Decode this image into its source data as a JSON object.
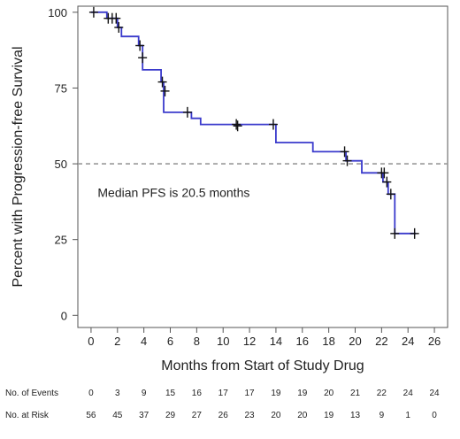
{
  "chart_data": {
    "type": "line",
    "subtype": "kaplan-meier step curve",
    "title": "",
    "xlabel": "Months from Start of Study Drug",
    "ylabel": "Percent with Progression-free Survival",
    "xlim": [
      -1,
      27
    ],
    "ylim": [
      -4,
      102
    ],
    "xticks": [
      0,
      2,
      4,
      6,
      8,
      10,
      12,
      14,
      16,
      18,
      20,
      22,
      24,
      26
    ],
    "yticks": [
      0,
      25,
      50,
      75,
      100
    ],
    "grid": false,
    "reference_line": {
      "y": 50,
      "style": "dashed",
      "color": "#9a9a9a"
    },
    "annotation": {
      "text": "Median PFS is 20.5 months",
      "x": 0.5,
      "y": 39
    },
    "line_color": "#3a3acc",
    "censor_color": "#111111",
    "series": [
      {
        "step_points": [
          [
            0,
            100
          ],
          [
            1.2,
            100
          ],
          [
            1.2,
            98
          ],
          [
            2.0,
            98
          ],
          [
            2.0,
            95
          ],
          [
            2.3,
            95
          ],
          [
            2.3,
            92
          ],
          [
            3.6,
            92
          ],
          [
            3.6,
            89
          ],
          [
            3.9,
            89
          ],
          [
            3.9,
            81
          ],
          [
            5.3,
            81
          ],
          [
            5.3,
            77
          ],
          [
            5.5,
            77
          ],
          [
            5.5,
            67
          ],
          [
            7.6,
            67
          ],
          [
            7.6,
            65
          ],
          [
            8.3,
            65
          ],
          [
            8.3,
            63
          ],
          [
            14.0,
            63
          ],
          [
            14.0,
            57
          ],
          [
            16.8,
            57
          ],
          [
            16.8,
            54
          ],
          [
            19.3,
            54
          ],
          [
            19.3,
            51
          ],
          [
            20.5,
            51
          ],
          [
            20.5,
            47
          ],
          [
            22.1,
            47
          ],
          [
            22.1,
            44
          ],
          [
            22.5,
            44
          ],
          [
            22.5,
            40
          ],
          [
            23.0,
            40
          ],
          [
            23.0,
            27
          ],
          [
            24.6,
            27
          ]
        ],
        "censored": [
          [
            0.2,
            100
          ],
          [
            1.3,
            98
          ],
          [
            1.6,
            98
          ],
          [
            1.9,
            98
          ],
          [
            2.1,
            95
          ],
          [
            3.7,
            89
          ],
          [
            3.9,
            85
          ],
          [
            5.4,
            77
          ],
          [
            5.6,
            74
          ],
          [
            7.3,
            67
          ],
          [
            11.0,
            63
          ],
          [
            11.1,
            62.5
          ],
          [
            13.8,
            63
          ],
          [
            19.2,
            54
          ],
          [
            19.4,
            51
          ],
          [
            22.0,
            47
          ],
          [
            22.2,
            47
          ],
          [
            22.4,
            44
          ],
          [
            22.7,
            40
          ],
          [
            23.0,
            27
          ],
          [
            24.5,
            27
          ]
        ]
      }
    ],
    "risk_table": {
      "columns": [
        0,
        2,
        4,
        6,
        8,
        10,
        12,
        14,
        16,
        18,
        20,
        22,
        24,
        26
      ],
      "rows": [
        {
          "label": "No. of Events",
          "values": [
            "0",
            "3",
            "9",
            "15",
            "16",
            "17",
            "17",
            "19",
            "19",
            "20",
            "21",
            "22",
            "24",
            "24"
          ]
        },
        {
          "label": "No. at Risk",
          "values": [
            "56",
            "45",
            "37",
            "29",
            "27",
            "26",
            "23",
            "20",
            "20",
            "19",
            "13",
            "9",
            "1",
            "0"
          ]
        }
      ]
    }
  }
}
